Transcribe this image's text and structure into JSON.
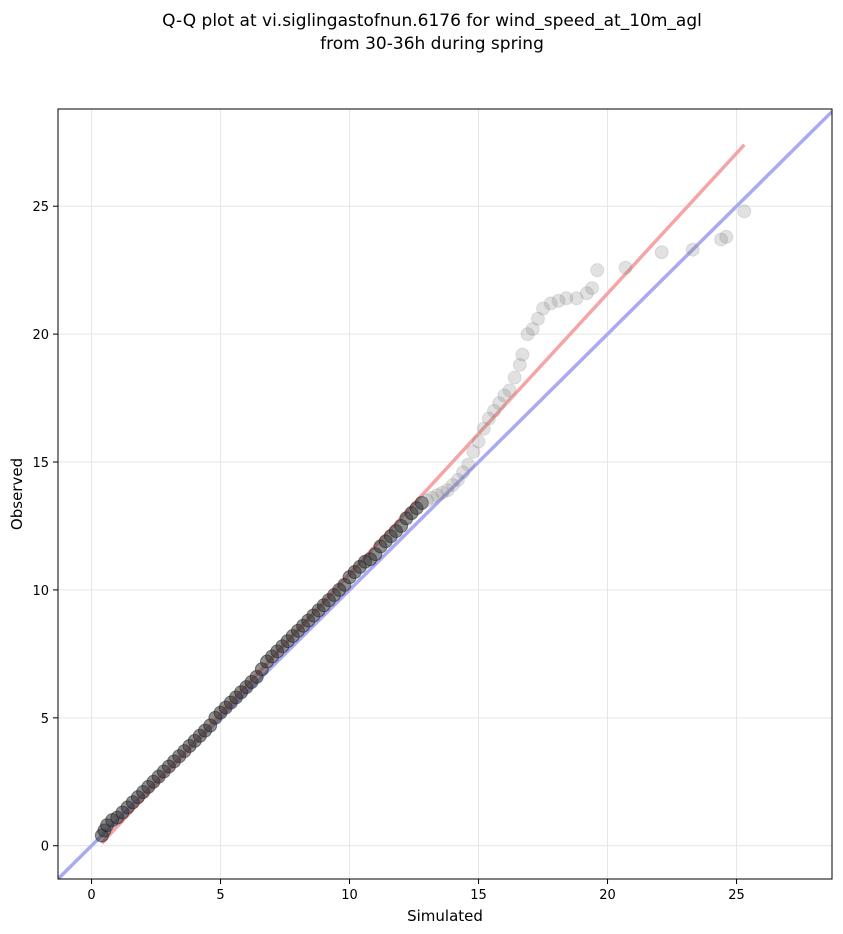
{
  "chart_data": {
    "type": "scatter",
    "title_line1": "Q-Q plot at vi.siglingastofnun.6176 for wind_speed_at_10m_agl",
    "title_line2": "from 30-36h during spring",
    "xlabel": "Simulated",
    "ylabel": "Observed",
    "xlim": [
      -1.3,
      28.7
    ],
    "ylim": [
      -1.3,
      28.8
    ],
    "x_ticks": [
      0,
      5,
      10,
      15,
      20,
      25
    ],
    "y_ticks": [
      0,
      5,
      10,
      15,
      20,
      25
    ],
    "grid": true,
    "identity_line": {
      "color": "#aaaaf2",
      "from": [
        -1.3,
        -1.3
      ],
      "to": [
        28.7,
        28.7
      ]
    },
    "fit_line": {
      "color": "#f5a5a5",
      "x": [
        0.4,
        25.3
      ],
      "y": [
        0.1,
        27.4
      ]
    },
    "points": {
      "x": [
        0.4,
        0.5,
        0.6,
        0.8,
        1.0,
        1.2,
        1.4,
        1.6,
        1.8,
        2.0,
        2.2,
        2.4,
        2.6,
        2.8,
        3.0,
        3.2,
        3.4,
        3.6,
        3.8,
        4.0,
        4.2,
        4.4,
        4.6,
        4.8,
        5.0,
        5.2,
        5.4,
        5.6,
        5.8,
        6.0,
        6.2,
        6.4,
        6.6,
        6.8,
        7.0,
        7.2,
        7.4,
        7.6,
        7.8,
        8.0,
        8.2,
        8.4,
        8.6,
        8.8,
        9.0,
        9.2,
        9.4,
        9.6,
        9.8,
        10.0,
        10.2,
        10.4,
        10.6,
        10.8,
        11.0,
        11.2,
        11.4,
        11.6,
        11.8,
        12.0,
        12.2,
        12.4,
        12.6,
        12.8,
        13.0,
        13.2,
        13.4,
        13.6,
        13.8,
        14.0,
        14.2,
        14.4,
        14.6,
        14.8,
        15.0,
        15.2,
        15.4,
        15.6,
        15.8,
        16.0,
        16.2,
        16.4,
        16.6,
        16.7,
        16.9,
        17.1,
        17.3,
        17.5,
        17.8,
        18.1,
        18.4,
        18.8,
        19.2,
        19.4,
        19.6,
        20.7,
        22.1,
        23.3,
        24.4,
        24.6,
        25.3
      ],
      "y": [
        0.4,
        0.6,
        0.8,
        1.0,
        1.1,
        1.3,
        1.5,
        1.7,
        1.9,
        2.1,
        2.3,
        2.5,
        2.7,
        2.9,
        3.1,
        3.3,
        3.5,
        3.7,
        3.9,
        4.1,
        4.3,
        4.5,
        4.7,
        5.0,
        5.2,
        5.4,
        5.6,
        5.8,
        6.0,
        6.2,
        6.4,
        6.6,
        6.9,
        7.2,
        7.4,
        7.6,
        7.8,
        8.0,
        8.2,
        8.4,
        8.6,
        8.8,
        9.0,
        9.2,
        9.4,
        9.6,
        9.8,
        10.0,
        10.2,
        10.5,
        10.7,
        10.9,
        11.1,
        11.2,
        11.4,
        11.7,
        11.9,
        12.1,
        12.3,
        12.5,
        12.8,
        13.0,
        13.2,
        13.4,
        13.5,
        13.6,
        13.7,
        13.8,
        13.9,
        14.1,
        14.3,
        14.6,
        14.9,
        15.4,
        15.8,
        16.3,
        16.7,
        17.0,
        17.3,
        17.6,
        17.8,
        18.3,
        18.8,
        19.2,
        20.0,
        20.2,
        20.6,
        21.0,
        21.2,
        21.3,
        21.4,
        21.4,
        21.6,
        21.8,
        22.5,
        22.6,
        23.2,
        23.3,
        23.7,
        23.8,
        24.8
      ]
    }
  }
}
